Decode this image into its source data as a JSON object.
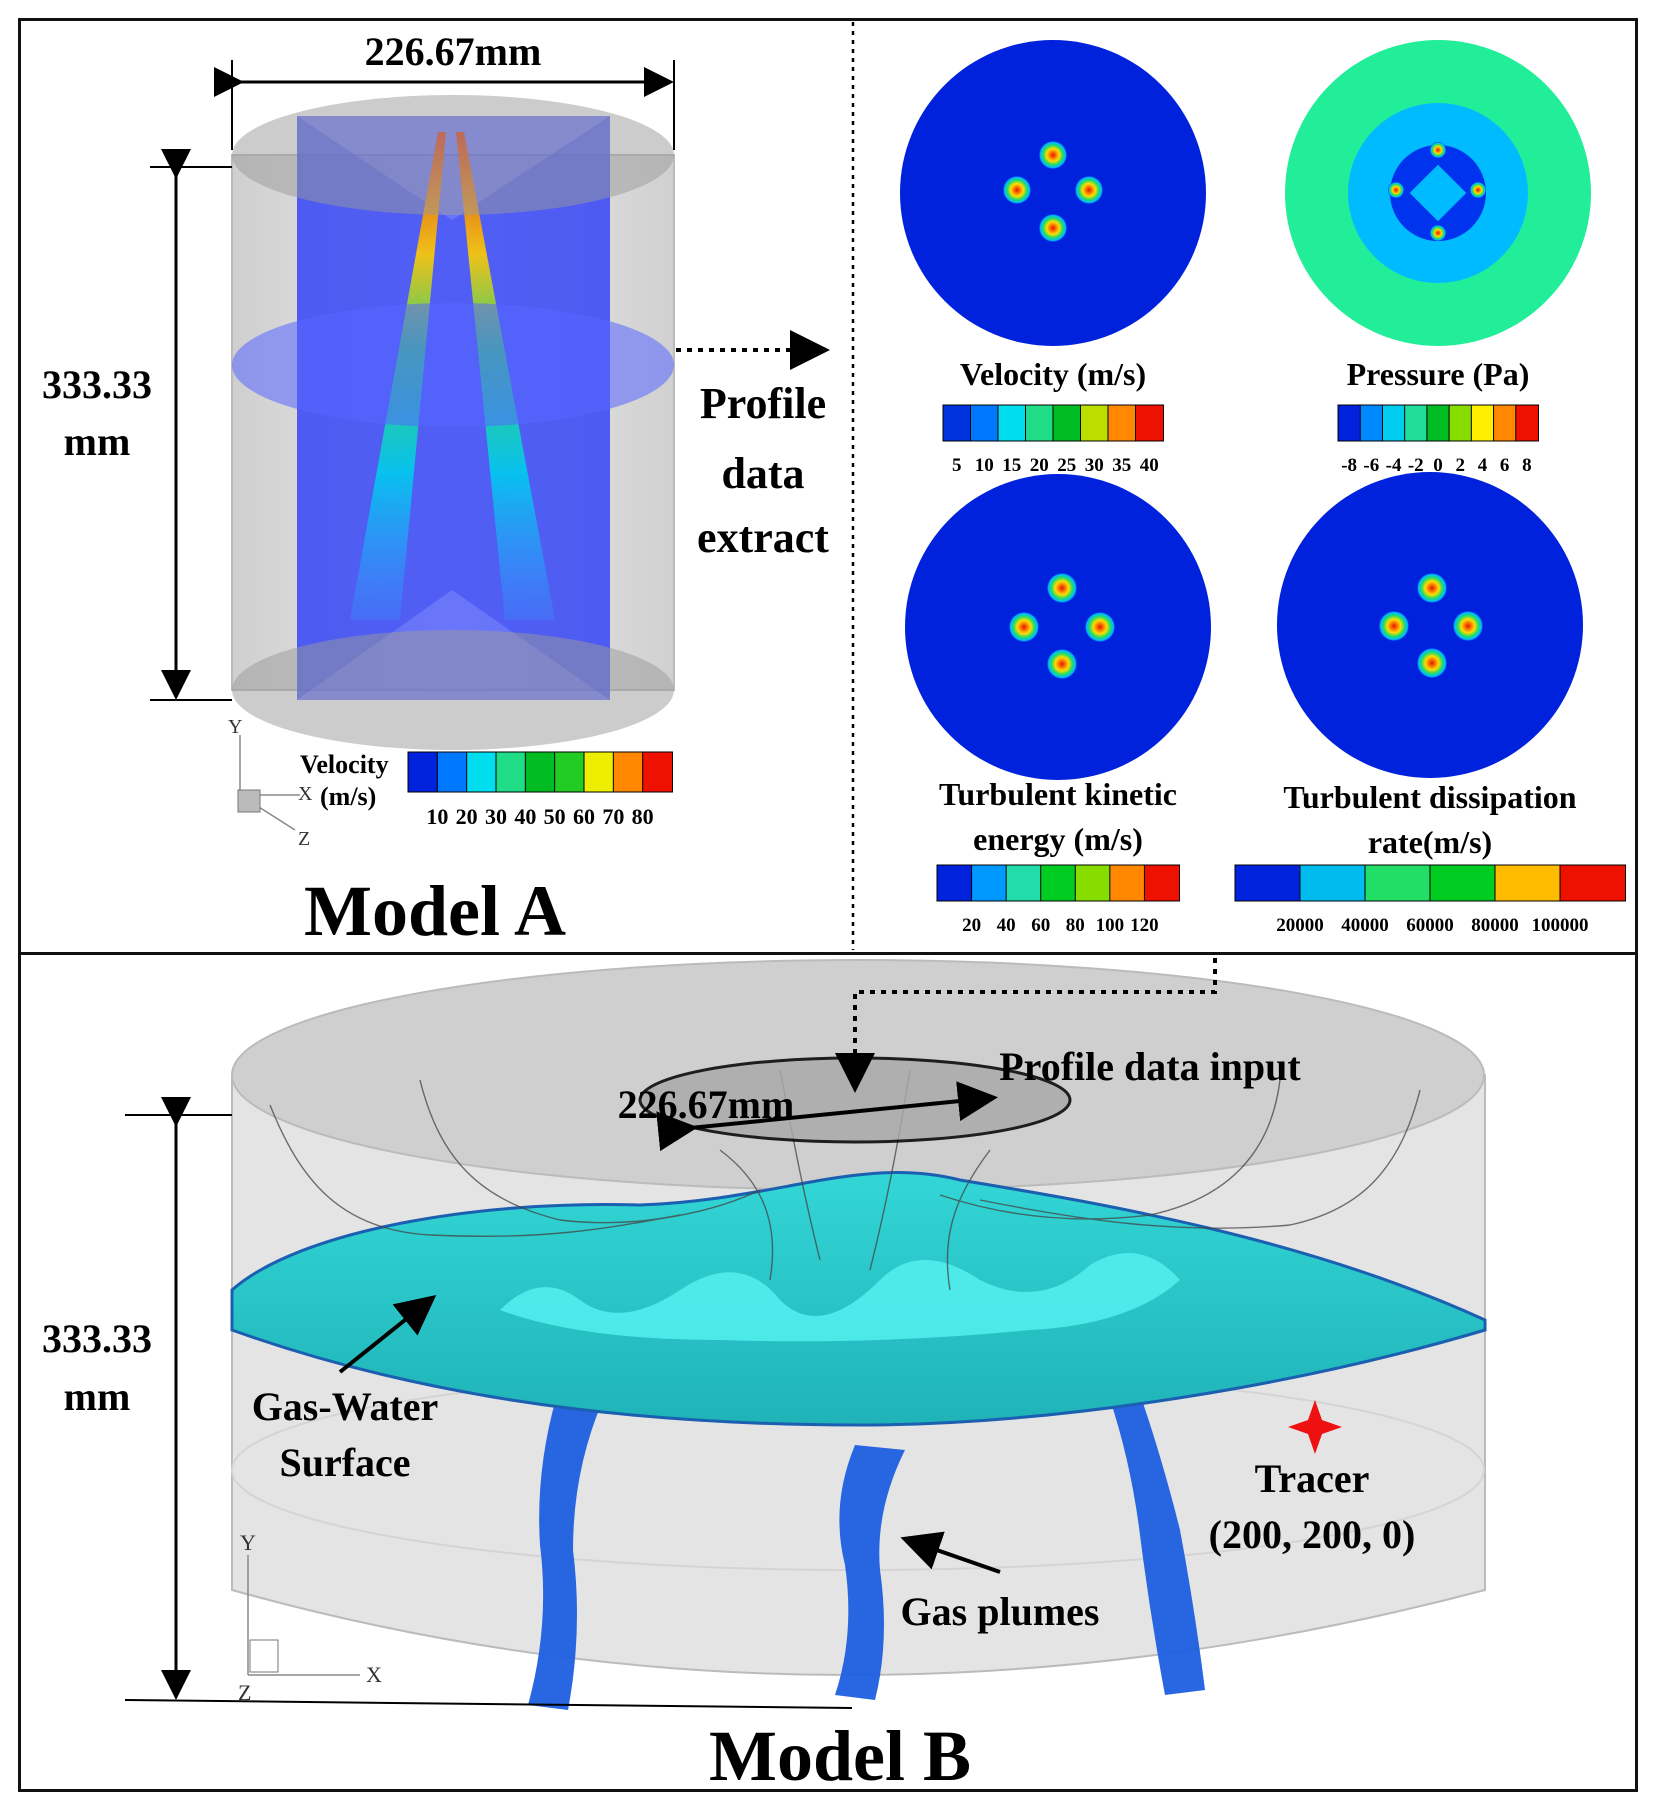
{
  "model_a": {
    "title": "Model A",
    "width_dim": "226.67mm",
    "height_dim_line1": "333.33",
    "height_dim_line2": "mm",
    "legend_title_line1": "Velocity",
    "legend_title_line2": "(m/s)",
    "legend_ticks": [
      "10",
      "20",
      "30",
      "40",
      "50",
      "60",
      "70",
      "80"
    ],
    "axes": {
      "y": "Y",
      "x": "X",
      "z": "Z"
    }
  },
  "extract_label": {
    "line1": "Profile",
    "line2": "data",
    "line3": "extract"
  },
  "profiles": [
    {
      "id": "velocity",
      "title_line1": "Velocity (m/s)",
      "title_line2": "",
      "ticks": [
        "5",
        "10",
        "15",
        "20",
        "25",
        "30",
        "35",
        "40"
      ],
      "colors": [
        "#0033dd",
        "#0077ff",
        "#00ddee",
        "#22dd88",
        "#00bb22",
        "#bbdd00",
        "#ff8800",
        "#ee1100"
      ]
    },
    {
      "id": "pressure",
      "title_line1": "Pressure (Pa)",
      "title_line2": "",
      "ticks": [
        "-8",
        "-6",
        "-4",
        "-2",
        "0",
        "2",
        "4",
        "6",
        "8"
      ],
      "colors": [
        "#0022dd",
        "#0088ff",
        "#00ccee",
        "#22dd99",
        "#00bb22",
        "#88dd00",
        "#ffee00",
        "#ff8800",
        "#ee1100"
      ]
    },
    {
      "id": "tke",
      "title_line1": "Turbulent kinetic",
      "title_line2": "energy (m/s)",
      "ticks": [
        "20",
        "40",
        "60",
        "80",
        "100",
        "120"
      ],
      "colors": [
        "#0022dd",
        "#0099ff",
        "#22ddaa",
        "#00cc22",
        "#88dd00",
        "#ff8800",
        "#ee1100"
      ]
    },
    {
      "id": "tdr",
      "title_line1": "Turbulent dissipation",
      "title_line2": "rate(m/s)",
      "ticks": [
        "20000",
        "40000",
        "60000",
        "80000",
        "100000"
      ],
      "colors": [
        "#0022dd",
        "#00bbee",
        "#22dd66",
        "#00cc22",
        "#ffbb00",
        "#ee1100"
      ]
    }
  ],
  "model_b": {
    "title": "Model B",
    "profile_input": "Profile data input",
    "diameter": "226.67mm",
    "height_dim_line1": "333.33",
    "height_dim_line2": "mm",
    "surface_label_line1": "Gas-Water",
    "surface_label_line2": "Surface",
    "tracer_label_line1": "Tracer",
    "tracer_label_line2": "(200, 200, 0)",
    "plumes_label": "Gas plumes",
    "axes": {
      "y": "Y",
      "x": "X",
      "z": "Z"
    }
  }
}
